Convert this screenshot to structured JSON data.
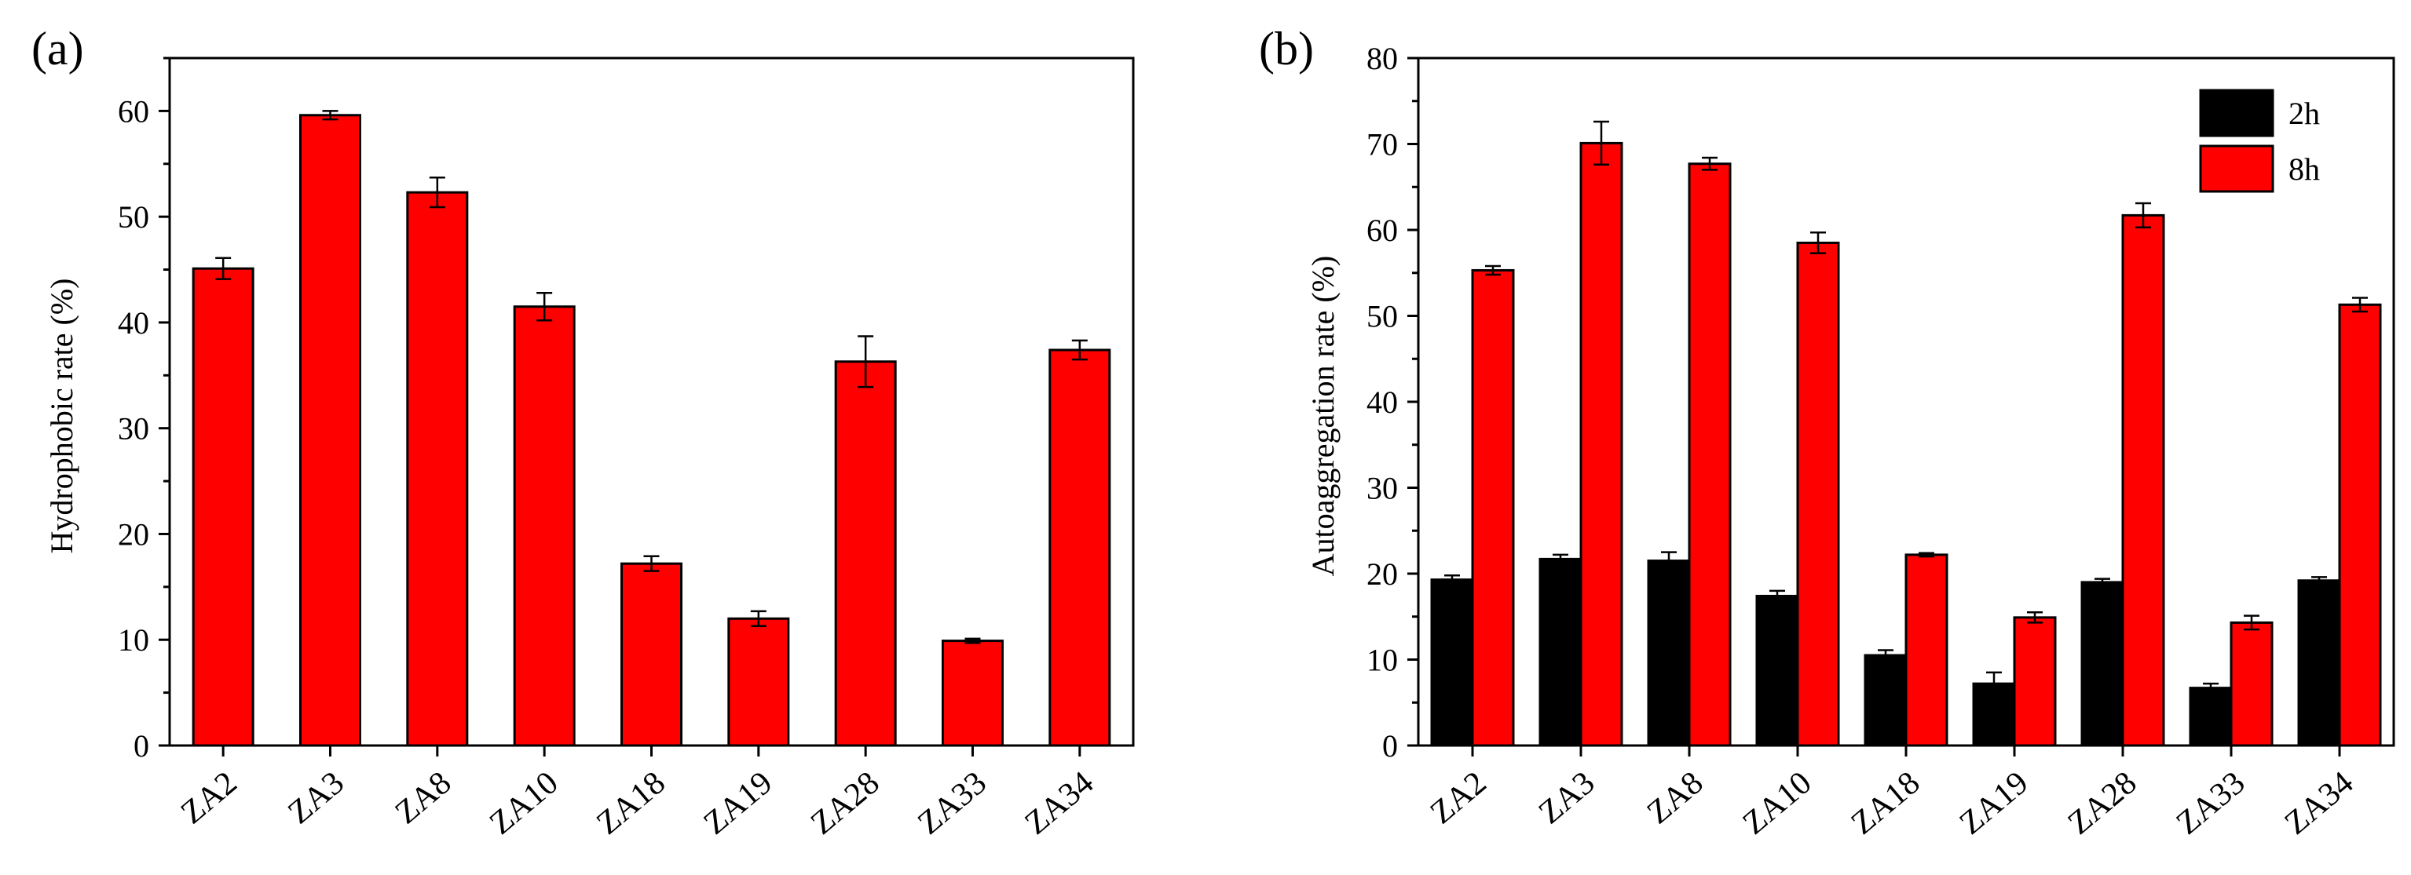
{
  "chart_data": [
    {
      "type": "bar",
      "panel_label": "(a)",
      "title": "",
      "xlabel": "",
      "ylabel": "Hydrophobic rate (%)",
      "ylim": [
        0,
        65
      ],
      "yticks": [
        0,
        10,
        20,
        30,
        40,
        50,
        60
      ],
      "categories": [
        "ZA2",
        "ZA3",
        "ZA8",
        "ZA10",
        "ZA18",
        "ZA19",
        "ZA28",
        "ZA33",
        "ZA34"
      ],
      "series": [
        {
          "name": "Hydrophobic rate",
          "color": "#ff0000",
          "values": [
            45.1,
            59.6,
            52.3,
            41.5,
            17.2,
            12.0,
            36.3,
            9.9,
            37.4
          ],
          "errors": [
            1.0,
            0.4,
            1.4,
            1.3,
            0.7,
            0.7,
            2.4,
            0.2,
            0.9
          ]
        }
      ],
      "legend": null
    },
    {
      "type": "bar",
      "panel_label": "(b)",
      "title": "",
      "xlabel": "",
      "ylabel": "Autoaggregation rate (%)",
      "ylim": [
        0,
        80
      ],
      "yticks": [
        0,
        10,
        20,
        30,
        40,
        50,
        60,
        70,
        80
      ],
      "categories": [
        "ZA2",
        "ZA3",
        "ZA8",
        "ZA10",
        "ZA18",
        "ZA19",
        "ZA28",
        "ZA33",
        "ZA34"
      ],
      "series": [
        {
          "name": "2h",
          "color": "#000000",
          "values": [
            19.3,
            21.7,
            21.5,
            17.4,
            10.5,
            7.2,
            19.0,
            6.7,
            19.2
          ],
          "errors": [
            0.5,
            0.5,
            1.0,
            0.6,
            0.6,
            1.3,
            0.4,
            0.5,
            0.4
          ]
        },
        {
          "name": "8h",
          "color": "#ff0000",
          "values": [
            55.3,
            70.1,
            67.7,
            58.5,
            22.2,
            14.9,
            61.7,
            14.3,
            51.3
          ],
          "errors": [
            0.5,
            2.5,
            0.7,
            1.2,
            0.2,
            0.6,
            1.4,
            0.8,
            0.8
          ]
        }
      ],
      "legend": {
        "placement": "top-right",
        "entries": [
          "2h",
          "8h"
        ]
      }
    }
  ]
}
